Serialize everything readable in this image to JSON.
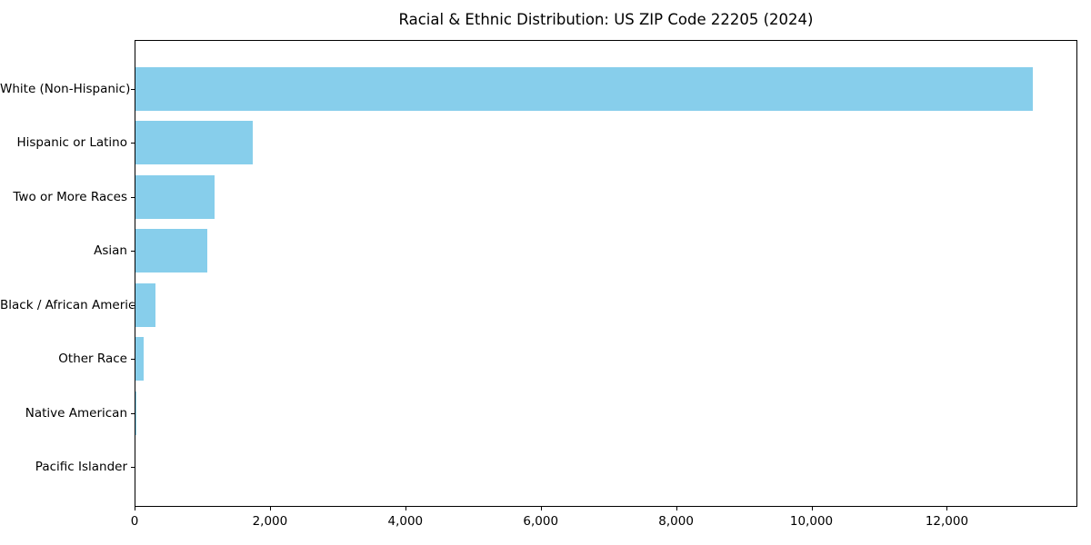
{
  "chart_data": {
    "type": "bar",
    "orientation": "horizontal",
    "title": "Racial & Ethnic Distribution: US ZIP Code 22205 (2024)",
    "xlabel": "",
    "ylabel": "",
    "categories": [
      "White (Non-Hispanic)",
      "Hispanic or Latino",
      "Two or More Races",
      "Asian",
      "Black / African American",
      "Other Race",
      "Native American",
      "Pacific Islander"
    ],
    "values": [
      13265,
      1750,
      1180,
      1075,
      315,
      135,
      15,
      5
    ],
    "xlim": [
      0,
      13928
    ],
    "x_ticks": [
      {
        "value": 0,
        "label": "0"
      },
      {
        "value": 2000,
        "label": "2,000"
      },
      {
        "value": 4000,
        "label": "4,000"
      },
      {
        "value": 6000,
        "label": "6,000"
      },
      {
        "value": 8000,
        "label": "8,000"
      },
      {
        "value": 10000,
        "label": "10,000"
      },
      {
        "value": 12000,
        "label": "12,000"
      }
    ],
    "bar_color": "#87CEEB",
    "axis_color": "#000000",
    "background_color": "#ffffff",
    "grid": false,
    "legend": false
  }
}
